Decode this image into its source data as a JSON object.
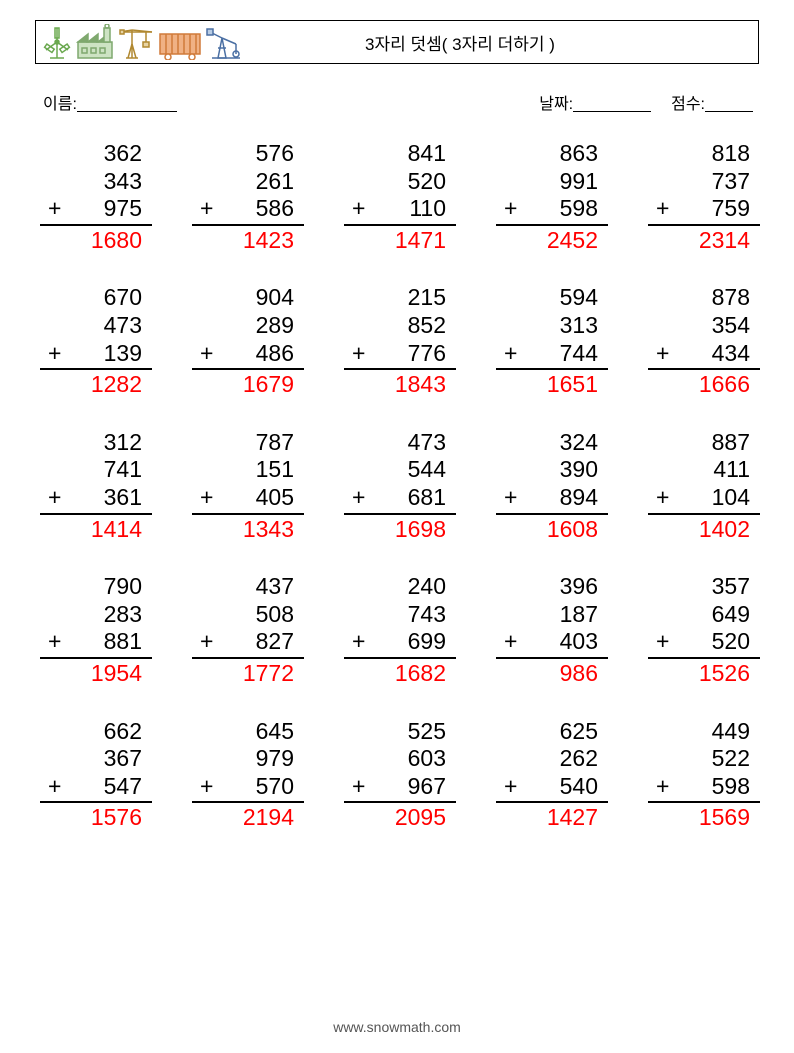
{
  "title": "3자리 덧셈( 3자리 더하기 )",
  "labels": {
    "name": "이름:",
    "date": "날짜:",
    "score": "점수:"
  },
  "plus_sign": "+",
  "answer_color": "#ff0000",
  "text_color": "#000000",
  "num_fontsize": 23,
  "footer": "www.snowmath.com",
  "header_icon_colors": {
    "windmill": "#6aa84f",
    "factory": "#7fa86e",
    "crane": "#b08830",
    "container": "#d07a3a",
    "pump": "#4a6fa3"
  },
  "problems": [
    [
      {
        "a": 362,
        "b": 343,
        "c": 975,
        "ans": 1680
      },
      {
        "a": 576,
        "b": 261,
        "c": 586,
        "ans": 1423
      },
      {
        "a": 841,
        "b": 520,
        "c": 110,
        "ans": 1471
      },
      {
        "a": 863,
        "b": 991,
        "c": 598,
        "ans": 2452
      },
      {
        "a": 818,
        "b": 737,
        "c": 759,
        "ans": 2314
      }
    ],
    [
      {
        "a": 670,
        "b": 473,
        "c": 139,
        "ans": 1282
      },
      {
        "a": 904,
        "b": 289,
        "c": 486,
        "ans": 1679
      },
      {
        "a": 215,
        "b": 852,
        "c": 776,
        "ans": 1843
      },
      {
        "a": 594,
        "b": 313,
        "c": 744,
        "ans": 1651
      },
      {
        "a": 878,
        "b": 354,
        "c": 434,
        "ans": 1666
      }
    ],
    [
      {
        "a": 312,
        "b": 741,
        "c": 361,
        "ans": 1414
      },
      {
        "a": 787,
        "b": 151,
        "c": 405,
        "ans": 1343
      },
      {
        "a": 473,
        "b": 544,
        "c": 681,
        "ans": 1698
      },
      {
        "a": 324,
        "b": 390,
        "c": 894,
        "ans": 1608
      },
      {
        "a": 887,
        "b": 411,
        "c": 104,
        "ans": 1402
      }
    ],
    [
      {
        "a": 790,
        "b": 283,
        "c": 881,
        "ans": 1954
      },
      {
        "a": 437,
        "b": 508,
        "c": 827,
        "ans": 1772
      },
      {
        "a": 240,
        "b": 743,
        "c": 699,
        "ans": 1682
      },
      {
        "a": 396,
        "b": 187,
        "c": 403,
        "ans": 986
      },
      {
        "a": 357,
        "b": 649,
        "c": 520,
        "ans": 1526
      }
    ],
    [
      {
        "a": 662,
        "b": 367,
        "c": 547,
        "ans": 1576
      },
      {
        "a": 645,
        "b": 979,
        "c": 570,
        "ans": 2194
      },
      {
        "a": 525,
        "b": 603,
        "c": 967,
        "ans": 2095
      },
      {
        "a": 625,
        "b": 262,
        "c": 540,
        "ans": 1427
      },
      {
        "a": 449,
        "b": 522,
        "c": 598,
        "ans": 1569
      }
    ]
  ]
}
